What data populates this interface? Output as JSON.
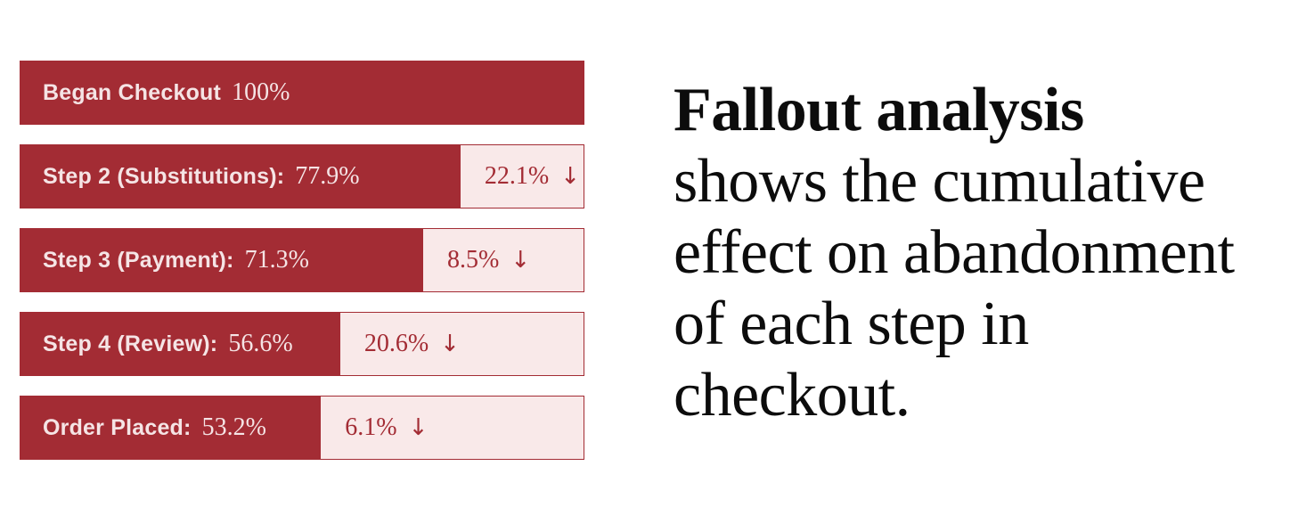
{
  "colors": {
    "bar_red": "#A32C34",
    "bar_text": "#F5E4E5",
    "pink_bg": "#F9E9E9",
    "pink_border": "#A32C34",
    "drop_text": "#A32C34",
    "body_text": "#0C0C0C",
    "background": "#FFFFFF"
  },
  "chart_data": {
    "type": "bar",
    "subtype": "fallout-funnel",
    "orientation": "horizontal",
    "unit": "%",
    "xlim": [
      0,
      100
    ],
    "grid": false,
    "categories": [
      "Began Checkout",
      "Step 2 (Substitutions):",
      "Step 3 (Payment):",
      "Step 4 (Review):",
      "Order Placed:"
    ],
    "values": [
      100,
      77.9,
      71.3,
      56.6,
      53.2
    ],
    "drops": [
      null,
      22.1,
      8.5,
      20.6,
      6.1
    ],
    "steps": [
      {
        "label": "Began Checkout",
        "value": 100,
        "value_text": "100%",
        "drop": null,
        "drop_text": null
      },
      {
        "label": "Step 2 (Substitutions):",
        "value": 77.9,
        "value_text": "77.9%",
        "drop": 22.1,
        "drop_text": "22.1%"
      },
      {
        "label": "Step 3 (Payment):",
        "value": 71.3,
        "value_text": "71.3%",
        "drop": 8.5,
        "drop_text": "8.5%"
      },
      {
        "label": "Step 4 (Review):",
        "value": 56.6,
        "value_text": "56.6%",
        "drop": 20.6,
        "drop_text": "20.6%"
      },
      {
        "label": "Order Placed:",
        "value": 53.2,
        "value_text": "53.2%",
        "drop": 6.1,
        "drop_text": "6.1%"
      }
    ],
    "drop_arrow_glyph": "↓"
  },
  "caption": {
    "full_text": "Fallout analysis shows the cumulative effect on abandonment of each step in checkout.",
    "lines": [
      {
        "text": "Fallout analysis",
        "bold": true
      },
      {
        "text": "shows the cumulative",
        "bold": false
      },
      {
        "text": "effect on abandonment",
        "bold": false
      },
      {
        "text": "of each step in",
        "bold": false
      },
      {
        "text": "checkout.",
        "bold": false
      }
    ]
  }
}
